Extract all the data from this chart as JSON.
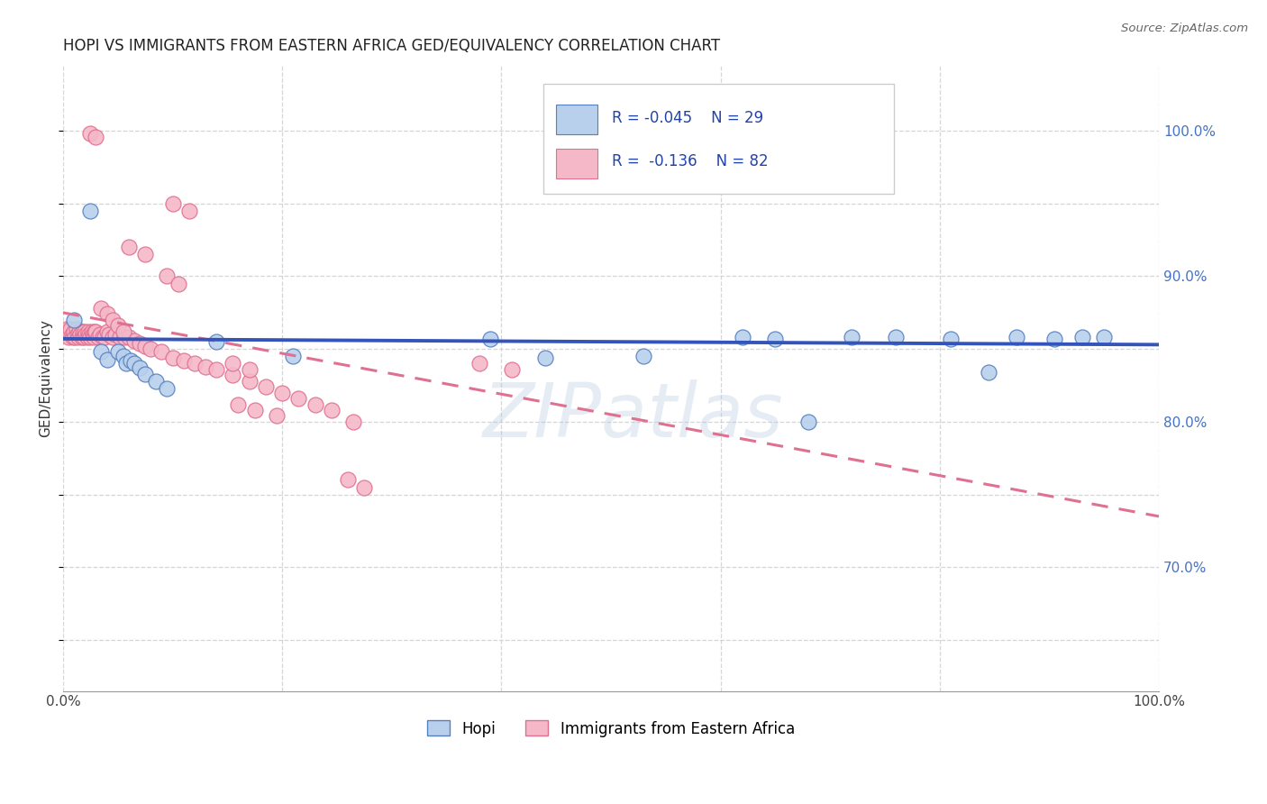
{
  "title": "HOPI VS IMMIGRANTS FROM EASTERN AFRICA GED/EQUIVALENCY CORRELATION CHART",
  "source": "Source: ZipAtlas.com",
  "ylabel": "GED/Equivalency",
  "xlim": [
    0.0,
    1.0
  ],
  "ylim": [
    0.615,
    1.045
  ],
  "ytick_vals_right": [
    0.7,
    0.8,
    0.9,
    1.0
  ],
  "ytick_labels_right": [
    "70.0%",
    "80.0%",
    "90.0%",
    "100.0%"
  ],
  "hopi_color": "#b8d0ec",
  "eastern_africa_color": "#f5b8c8",
  "hopi_edge_color": "#5580c0",
  "eastern_africa_edge_color": "#e07090",
  "hopi_line_color": "#3355bb",
  "eastern_africa_line_color": "#e07090",
  "watermark": "ZIPatlas",
  "hopi_x": [
    0.01,
    0.025,
    0.035,
    0.04,
    0.05,
    0.055,
    0.058,
    0.062,
    0.065,
    0.07,
    0.075,
    0.085,
    0.095,
    0.14,
    0.21,
    0.39,
    0.44,
    0.53,
    0.62,
    0.65,
    0.68,
    0.72,
    0.76,
    0.81,
    0.845,
    0.87,
    0.905,
    0.93,
    0.95
  ],
  "hopi_y": [
    0.87,
    0.945,
    0.848,
    0.843,
    0.848,
    0.845,
    0.84,
    0.842,
    0.84,
    0.837,
    0.833,
    0.828,
    0.823,
    0.855,
    0.845,
    0.857,
    0.844,
    0.845,
    0.858,
    0.857,
    0.8,
    0.858,
    0.858,
    0.857,
    0.834,
    0.858,
    0.857,
    0.858,
    0.858
  ],
  "eastern_africa_x": [
    0.002,
    0.003,
    0.004,
    0.005,
    0.006,
    0.007,
    0.008,
    0.009,
    0.01,
    0.011,
    0.012,
    0.013,
    0.014,
    0.015,
    0.016,
    0.017,
    0.018,
    0.019,
    0.02,
    0.021,
    0.022,
    0.023,
    0.024,
    0.025,
    0.026,
    0.027,
    0.028,
    0.029,
    0.03,
    0.032,
    0.034,
    0.036,
    0.038,
    0.04,
    0.042,
    0.045,
    0.048,
    0.052,
    0.056,
    0.06,
    0.065,
    0.07,
    0.075,
    0.08,
    0.09,
    0.1,
    0.11,
    0.12,
    0.13,
    0.14,
    0.155,
    0.17,
    0.185,
    0.2,
    0.215,
    0.23,
    0.245,
    0.265,
    0.155,
    0.17,
    0.1,
    0.115,
    0.06,
    0.075,
    0.095,
    0.105,
    0.035,
    0.04,
    0.045,
    0.05,
    0.055,
    0.025,
    0.03,
    0.38,
    0.41,
    0.26,
    0.275,
    0.16,
    0.175,
    0.195
  ],
  "eastern_africa_y": [
    0.862,
    0.864,
    0.86,
    0.858,
    0.862,
    0.864,
    0.86,
    0.858,
    0.862,
    0.858,
    0.864,
    0.86,
    0.858,
    0.862,
    0.86,
    0.858,
    0.862,
    0.858,
    0.862,
    0.86,
    0.858,
    0.862,
    0.86,
    0.858,
    0.862,
    0.86,
    0.858,
    0.862,
    0.862,
    0.858,
    0.86,
    0.858,
    0.858,
    0.862,
    0.86,
    0.858,
    0.86,
    0.858,
    0.858,
    0.858,
    0.856,
    0.854,
    0.852,
    0.85,
    0.848,
    0.844,
    0.842,
    0.84,
    0.838,
    0.836,
    0.832,
    0.828,
    0.824,
    0.82,
    0.816,
    0.812,
    0.808,
    0.8,
    0.84,
    0.836,
    0.95,
    0.945,
    0.92,
    0.915,
    0.9,
    0.895,
    0.878,
    0.874,
    0.87,
    0.866,
    0.862,
    0.998,
    0.996,
    0.84,
    0.836,
    0.76,
    0.755,
    0.812,
    0.808,
    0.804
  ]
}
